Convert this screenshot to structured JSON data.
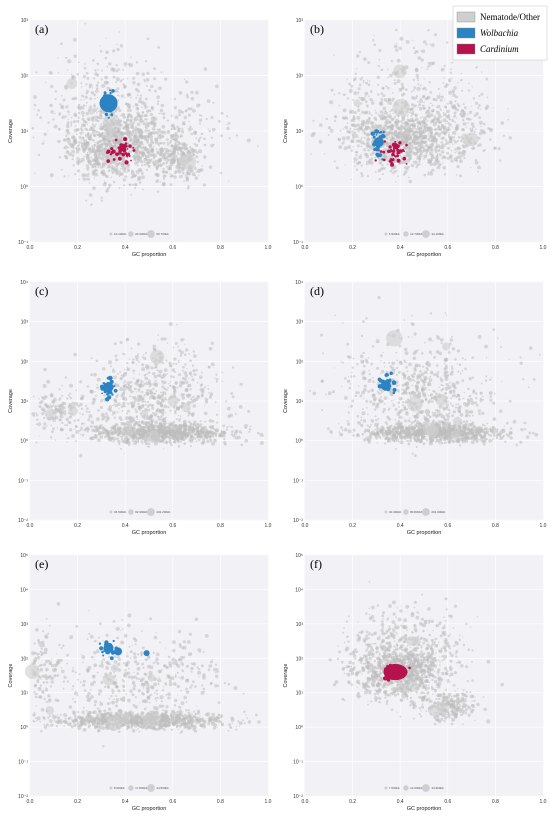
{
  "legend": [
    {
      "label": "Nematode/Other",
      "color": "#cfcfcf",
      "italic": false
    },
    {
      "label": "Wolbachia",
      "color": "#2b83c4",
      "italic": true
    },
    {
      "label": "Cardinium",
      "color": "#b5124e",
      "italic": true
    }
  ],
  "chart_data": [
    {
      "panel": "(a)",
      "type": "scatter",
      "xlabel": "GC proportion",
      "ylabel": "Coverage",
      "xlim": [
        0,
        1
      ],
      "ylim_log10": [
        -1,
        3
      ],
      "x_ticks": [
        "0.0",
        "0.2",
        "0.4",
        "0.6",
        "0.8",
        "1.0"
      ],
      "y_ticks": [
        "10⁻¹",
        "10⁰",
        "10¹",
        "10²",
        "10³"
      ],
      "size_legend": [
        "10.100kb",
        "20.300kb",
        "50.700kb"
      ],
      "clusters": {
        "wolbachia": {
          "gc": 0.33,
          "log_cov": 1.5,
          "size": "large"
        },
        "cardinium": {
          "gc": 0.39,
          "log_cov": 0.6
        }
      }
    },
    {
      "panel": "(b)",
      "type": "scatter",
      "xlabel": "GC proportion",
      "ylabel": "Coverage",
      "xlim": [
        0,
        1
      ],
      "ylim_log10": [
        -1,
        3
      ],
      "x_ticks": [
        "0.0",
        "0.2",
        "0.4",
        "0.6",
        "0.8",
        "1.0"
      ],
      "y_ticks": [
        "10⁻¹",
        "10⁰",
        "10¹",
        "10²",
        "10³"
      ],
      "size_legend": [
        "6.900kb",
        "13.700kb",
        "34.100kb"
      ],
      "clusters": {
        "wolbachia": {
          "gc": 0.31,
          "log_cov": 0.8
        },
        "cardinium": {
          "gc": 0.38,
          "log_cov": 0.65
        }
      }
    },
    {
      "panel": "(c)",
      "type": "scatter",
      "xlabel": "GC proportion",
      "ylabel": "Coverage",
      "xlim": [
        0,
        1
      ],
      "ylim_log10": [
        -2,
        4
      ],
      "x_ticks": [
        "0.0",
        "0.2",
        "0.4",
        "0.6",
        "0.8",
        "1.0"
      ],
      "y_ticks": [
        "10⁻²",
        "10⁻¹",
        "10⁰",
        "10¹",
        "10²",
        "10³",
        "10⁴"
      ],
      "size_legend": [
        "46.500kb",
        "92.900kb",
        "232.200kb"
      ],
      "clusters": {
        "wolbachia": {
          "gc": 0.33,
          "log_cov": 1.35
        }
      }
    },
    {
      "panel": "(d)",
      "type": "scatter",
      "xlabel": "GC proportion",
      "ylabel": "Coverage",
      "xlim": [
        0,
        1
      ],
      "ylim_log10": [
        -2,
        4
      ],
      "x_ticks": [
        "0.0",
        "0.2",
        "0.4",
        "0.6",
        "0.8",
        "1.0"
      ],
      "y_ticks": [
        "10⁻²",
        "10⁻¹",
        "10⁰",
        "10¹",
        "10²",
        "10³",
        "10⁴"
      ],
      "size_legend": [
        "40.400kb",
        "80.800kb",
        "201.900kb"
      ],
      "clusters": {
        "wolbachia": {
          "gc": 0.34,
          "log_cov": 1.4
        }
      }
    },
    {
      "panel": "(e)",
      "type": "scatter",
      "xlabel": "GC proportion",
      "ylabel": "Coverage",
      "xlim": [
        0,
        1
      ],
      "ylim_log10": [
        -2,
        5
      ],
      "x_ticks": [
        "0.0",
        "0.2",
        "0.4",
        "0.6",
        "0.8",
        "1.0"
      ],
      "y_ticks": [
        "10⁻²",
        "10⁻¹",
        "10⁰",
        "10¹",
        "10²",
        "10³",
        "10⁴",
        "10⁵"
      ],
      "size_legend": [
        "8.900kb",
        "17.800kb",
        "44.500kb"
      ],
      "clusters": {
        "wolbachia": {
          "gc": 0.33,
          "log_cov": 2.3
        }
      }
    },
    {
      "panel": "(f)",
      "type": "scatter",
      "xlabel": "GC proportion",
      "ylabel": "Coverage",
      "xlim": [
        0,
        1
      ],
      "ylim_log10": [
        -2,
        5
      ],
      "x_ticks": [
        "0.0",
        "0.2",
        "0.4",
        "0.6",
        "0.8",
        "1.0"
      ],
      "y_ticks": [
        "10⁻²",
        "10⁻¹",
        "10⁰",
        "10¹",
        "10²",
        "10³",
        "10⁴",
        "10⁵"
      ],
      "size_legend": [
        "7.000kb",
        "14.000kb",
        "34.900kb"
      ],
      "clusters": {
        "cardinium": {
          "gc": 0.38,
          "log_cov": 1.6
        }
      }
    }
  ]
}
